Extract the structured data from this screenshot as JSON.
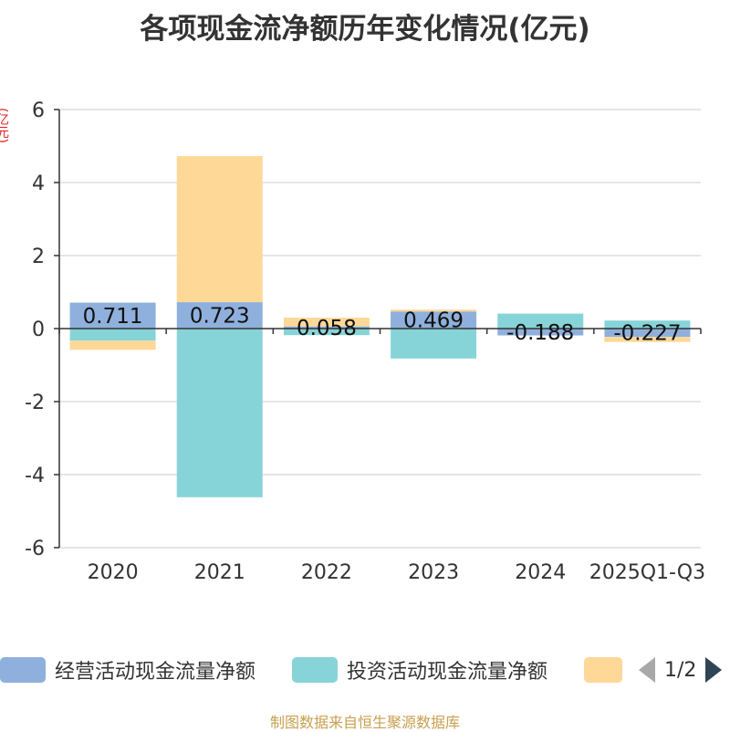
{
  "title": "各项现金流净额历年变化情况(亿元)",
  "unit_label": "(亿元)",
  "footer": "制图数据来自恒生聚源数据库",
  "legend": {
    "items": [
      {
        "label": "经营活动现金流量净额",
        "color": "#8fb0dc"
      },
      {
        "label": "投资活动现金流量净额",
        "color": "#86d4d8"
      },
      {
        "label": "",
        "color": "#fed897"
      }
    ],
    "page": "1/2"
  },
  "chart_data": {
    "type": "bar",
    "stacked": true,
    "categories": [
      "2020",
      "2021",
      "2022",
      "2023",
      "2024",
      "2025Q1-Q3"
    ],
    "series": [
      {
        "name": "经营活动现金流量净额",
        "color": "#8fb0dc",
        "values": [
          0.711,
          0.723,
          0.058,
          0.469,
          -0.188,
          -0.227
        ]
      },
      {
        "name": "投资活动现金流量净额",
        "color": "#86d4d8",
        "values": [
          -0.33,
          -4.62,
          -0.18,
          -0.82,
          0.41,
          0.22
        ]
      },
      {
        "name": "",
        "color": "#fed897",
        "values": [
          -0.25,
          4.0,
          0.24,
          0.05,
          0.0,
          -0.14
        ]
      }
    ],
    "data_labels": [
      "0.711",
      "0.723",
      "0.058",
      "0.469",
      "-0.188",
      "-0.227"
    ],
    "yticks": [
      6,
      4,
      2,
      0,
      -2,
      -4,
      -6
    ],
    "ylim": [
      -6,
      6
    ],
    "grid": true
  }
}
